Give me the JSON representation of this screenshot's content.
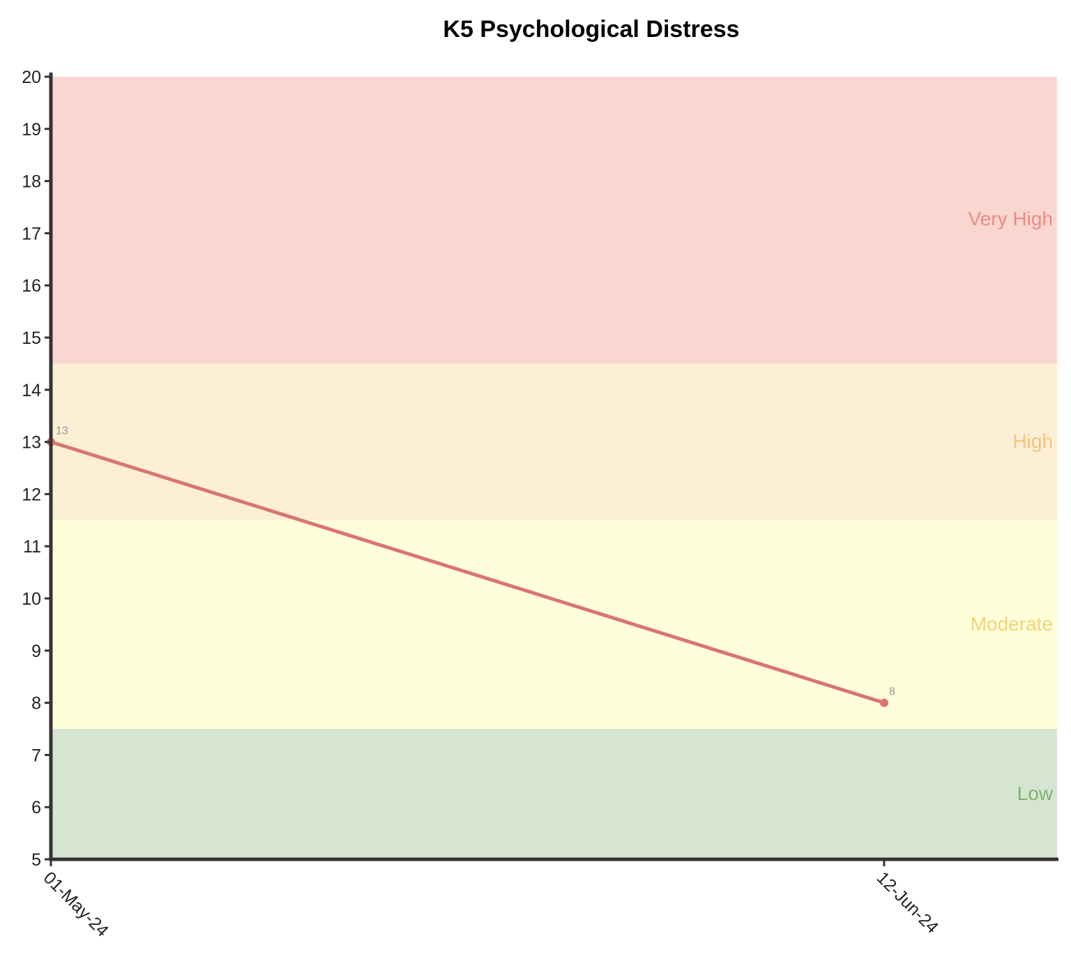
{
  "chart_data": {
    "type": "line",
    "title": "K5 Psychological Distress",
    "xlabel": "",
    "ylabel": "",
    "ylim": [
      5,
      20
    ],
    "yticks": [
      5,
      6,
      7,
      8,
      9,
      10,
      11,
      12,
      13,
      14,
      15,
      16,
      17,
      18,
      19,
      20
    ],
    "x": [
      "01-May-24",
      "12-Jun-24"
    ],
    "series": [
      {
        "values": [
          13,
          8
        ],
        "color": "#d9756f",
        "point_labels": [
          "13",
          "8"
        ]
      }
    ],
    "bands": [
      {
        "label": "Very High",
        "from": 14.5,
        "to": 20,
        "fill": "#f9d6d0",
        "text_color": "#ee8a80"
      },
      {
        "label": "High",
        "from": 11.5,
        "to": 14.5,
        "fill": "#fcefd6",
        "text_color": "#f5c27d"
      },
      {
        "label": "Moderate",
        "from": 7.5,
        "to": 11.5,
        "fill": "#fefed8",
        "text_color": "#f2d47a"
      },
      {
        "label": "Low",
        "from": 5,
        "to": 7.5,
        "fill": "#d6e5d1",
        "text_color": "#7fb26e"
      }
    ],
    "grid": false,
    "legend": "none"
  }
}
